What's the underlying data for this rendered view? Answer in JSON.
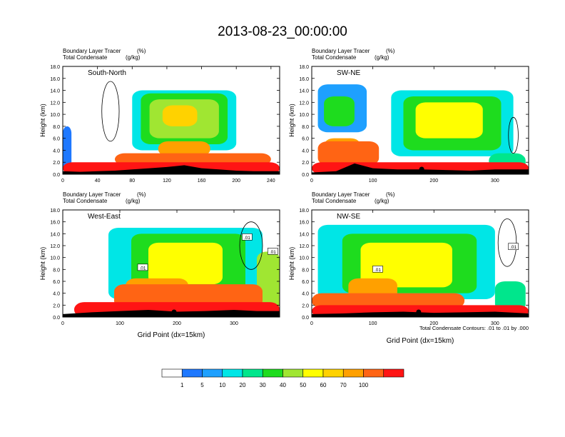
{
  "title": "2013-08-23_00:00:00",
  "palette": [
    "#ffffff",
    "#1e78ff",
    "#1ea0ff",
    "#00e6e6",
    "#00e68c",
    "#1edc1e",
    "#a0e632",
    "#ffff00",
    "#ffd200",
    "#ffa000",
    "#ff6414",
    "#ff1414"
  ],
  "colorbar": {
    "labels": [
      "1",
      "5",
      "10",
      "20",
      "30",
      "40",
      "50",
      "60",
      "70",
      "100"
    ]
  },
  "footnote": "Total Condensate Contours: .01 to .01 by .000",
  "chart_data": [
    {
      "type": "heatmap",
      "title": "South-North",
      "left_string_1": "Boundary Layer Tracer",
      "right_string_1": "(%)",
      "left_string_2": "Total Condensate",
      "right_string_2": "(g/kg)",
      "xlabel": "",
      "ylabel": "Height (km)",
      "xlim": [
        0,
        250
      ],
      "ylim": [
        0,
        18
      ],
      "xticks": [
        "0",
        "40",
        "80",
        "120",
        "160",
        "200",
        "240"
      ],
      "xtick_values": [
        0,
        40,
        80,
        120,
        160,
        200,
        240
      ],
      "yticks": [
        "0.0",
        "2.0",
        "4.0",
        "6.0",
        "8.0",
        "10.0",
        "12.0",
        "14.0",
        "16.0",
        "18.0"
      ],
      "contour_labels": [],
      "surface_marker_x": 125,
      "terrain": [
        [
          0,
          0.5
        ],
        [
          20,
          0.4
        ],
        [
          40,
          0.5
        ],
        [
          60,
          0.6
        ],
        [
          80,
          0.8
        ],
        [
          100,
          1.0
        ],
        [
          120,
          1.2
        ],
        [
          140,
          1.5
        ],
        [
          160,
          1.0
        ],
        [
          180,
          0.8
        ],
        [
          200,
          0.6
        ],
        [
          220,
          0.5
        ],
        [
          250,
          0.5
        ]
      ],
      "blobs": [
        {
          "x": 0,
          "w": 250,
          "y": 0,
          "h": 2.0,
          "level": 11
        },
        {
          "x": 60,
          "w": 180,
          "y": 1.5,
          "h": 2.0,
          "level": 10
        },
        {
          "x": 110,
          "w": 60,
          "y": 3.0,
          "h": 2.5,
          "level": 9
        },
        {
          "x": 80,
          "w": 120,
          "y": 4.0,
          "h": 10.0,
          "level": 3
        },
        {
          "x": 90,
          "w": 100,
          "y": 5.0,
          "h": 8.5,
          "level": 5
        },
        {
          "x": 100,
          "w": 80,
          "y": 6.0,
          "h": 6.5,
          "level": 6
        },
        {
          "x": 115,
          "w": 40,
          "y": 8.0,
          "h": 3.5,
          "level": 8
        },
        {
          "x": 0,
          "w": 10,
          "y": 0.5,
          "h": 7.5,
          "level": 1
        }
      ],
      "outline_clouds": [
        [
          55,
          10.5,
          10,
          5
        ]
      ]
    },
    {
      "type": "heatmap",
      "title": "SW-NE",
      "left_string_1": "Boundary Layer Tracer",
      "right_string_1": "(%)",
      "left_string_2": "Total Condensate",
      "right_string_2": "(g/kg)",
      "xlabel": "",
      "ylabel": "Height (km)",
      "xlim": [
        0,
        355
      ],
      "ylim": [
        0,
        18
      ],
      "xticks": [
        "0",
        "100",
        "200",
        "300"
      ],
      "xtick_values": [
        0,
        100,
        200,
        300
      ],
      "yticks": [
        "0.0",
        "2.0",
        "4.0",
        "6.0",
        "8.0",
        "10.0",
        "12.0",
        "14.0",
        "16.0",
        "18.0"
      ],
      "contour_labels": [],
      "surface_marker_x": 180,
      "terrain": [
        [
          0,
          0.3
        ],
        [
          40,
          0.5
        ],
        [
          70,
          1.8
        ],
        [
          100,
          1.0
        ],
        [
          140,
          0.8
        ],
        [
          180,
          0.8
        ],
        [
          220,
          0.7
        ],
        [
          260,
          0.6
        ],
        [
          300,
          0.8
        ],
        [
          355,
          0.8
        ]
      ],
      "blobs": [
        {
          "x": 0,
          "w": 355,
          "y": 0,
          "h": 2.0,
          "level": 11
        },
        {
          "x": 10,
          "w": 100,
          "y": 1.5,
          "h": 4.0,
          "level": 10
        },
        {
          "x": 20,
          "w": 60,
          "y": 3.0,
          "h": 3.0,
          "level": 9
        },
        {
          "x": 130,
          "w": 200,
          "y": 3.0,
          "h": 11.0,
          "level": 3
        },
        {
          "x": 150,
          "w": 160,
          "y": 4.0,
          "h": 9.0,
          "level": 5
        },
        {
          "x": 170,
          "w": 110,
          "y": 6.0,
          "h": 6.0,
          "level": 7
        },
        {
          "x": 10,
          "w": 80,
          "y": 7.0,
          "h": 8.0,
          "level": 2
        },
        {
          "x": 20,
          "w": 50,
          "y": 8.0,
          "h": 5.0,
          "level": 5
        },
        {
          "x": 290,
          "w": 60,
          "y": 0.5,
          "h": 3.0,
          "level": 4
        }
      ],
      "outline_clouds": [
        [
          330,
          6.5,
          8,
          3
        ]
      ]
    },
    {
      "type": "heatmap",
      "title": "West-East",
      "left_string_1": "Boundary Layer Tracer",
      "right_string_1": "(%)",
      "left_string_2": "Total Condensate",
      "right_string_2": "(g/kg)",
      "xlabel": "Grid Point (dx=15km)",
      "ylabel": "Height (km)",
      "xlim": [
        0,
        380
      ],
      "ylim": [
        0,
        18
      ],
      "xticks": [
        "0",
        "100",
        "200",
        "300"
      ],
      "xtick_values": [
        0,
        100,
        200,
        300
      ],
      "yticks": [
        "0.0",
        "2.0",
        "4.0",
        "6.0",
        "8.0",
        "10.0",
        "12.0",
        "14.0",
        "16.0",
        "18.0"
      ],
      "contour_labels": [
        ".01",
        ".01",
        ".01"
      ],
      "contour_label_pos": [
        [
          140,
          8.3
        ],
        [
          323,
          13.4
        ],
        [
          368,
          11.0
        ]
      ],
      "surface_marker_x": 195,
      "terrain": [
        [
          0,
          0.5
        ],
        [
          50,
          0.8
        ],
        [
          100,
          1.0
        ],
        [
          150,
          1.2
        ],
        [
          200,
          0.9
        ],
        [
          250,
          1.0
        ],
        [
          300,
          1.2
        ],
        [
          340,
          1.0
        ],
        [
          380,
          1.0
        ]
      ],
      "blobs": [
        {
          "x": 20,
          "w": 360,
          "y": 0,
          "h": 2.5,
          "level": 11
        },
        {
          "x": 90,
          "w": 260,
          "y": 1.5,
          "h": 4.0,
          "level": 10
        },
        {
          "x": 110,
          "w": 110,
          "y": 2.5,
          "h": 4.0,
          "level": 9
        },
        {
          "x": 80,
          "w": 270,
          "y": 3.0,
          "h": 12.0,
          "level": 3
        },
        {
          "x": 120,
          "w": 200,
          "y": 4.0,
          "h": 10.0,
          "level": 5
        },
        {
          "x": 150,
          "w": 130,
          "y": 5.5,
          "h": 7.0,
          "level": 7
        },
        {
          "x": 340,
          "w": 40,
          "y": 1.0,
          "h": 10.0,
          "level": 6
        }
      ],
      "outline_clouds": [
        [
          330,
          12,
          20,
          4
        ]
      ]
    },
    {
      "type": "heatmap",
      "title": "NW-SE",
      "left_string_1": "Boundary Layer Tracer",
      "right_string_1": "(%)",
      "left_string_2": "Total Condensate",
      "right_string_2": "(g/kg)",
      "xlabel": "Grid Point (dx=15km)",
      "ylabel": "Height (km)",
      "xlim": [
        0,
        355
      ],
      "ylim": [
        0,
        18
      ],
      "xticks": [
        "0",
        "100",
        "200",
        "300"
      ],
      "xtick_values": [
        0,
        100,
        200,
        300
      ],
      "yticks": [
        "0.0",
        "2.0",
        "4.0",
        "6.0",
        "8.0",
        "10.0",
        "12.0",
        "14.0",
        "16.0",
        "18.0"
      ],
      "contour_labels": [
        ".01",
        ".01"
      ],
      "contour_label_pos": [
        [
          108,
          8.0
        ],
        [
          330,
          11.8
        ]
      ],
      "surface_marker_x": 175,
      "terrain": [
        [
          0,
          0.5
        ],
        [
          50,
          0.6
        ],
        [
          100,
          0.8
        ],
        [
          150,
          0.9
        ],
        [
          200,
          0.7
        ],
        [
          250,
          0.8
        ],
        [
          300,
          0.9
        ],
        [
          355,
          0.6
        ]
      ],
      "blobs": [
        {
          "x": 0,
          "w": 355,
          "y": 0,
          "h": 2.0,
          "level": 11
        },
        {
          "x": 0,
          "w": 250,
          "y": 1.5,
          "h": 2.5,
          "level": 10
        },
        {
          "x": 60,
          "w": 80,
          "y": 2.5,
          "h": 4.0,
          "level": 9
        },
        {
          "x": 10,
          "w": 290,
          "y": 3.0,
          "h": 12.5,
          "level": 3
        },
        {
          "x": 50,
          "w": 220,
          "y": 4.0,
          "h": 10.0,
          "level": 5
        },
        {
          "x": 80,
          "w": 150,
          "y": 5.0,
          "h": 7.5,
          "level": 7
        },
        {
          "x": 300,
          "w": 50,
          "y": 1.0,
          "h": 5.0,
          "level": 4
        }
      ],
      "outline_clouds": [
        [
          320,
          12.5,
          15,
          4
        ]
      ]
    }
  ]
}
